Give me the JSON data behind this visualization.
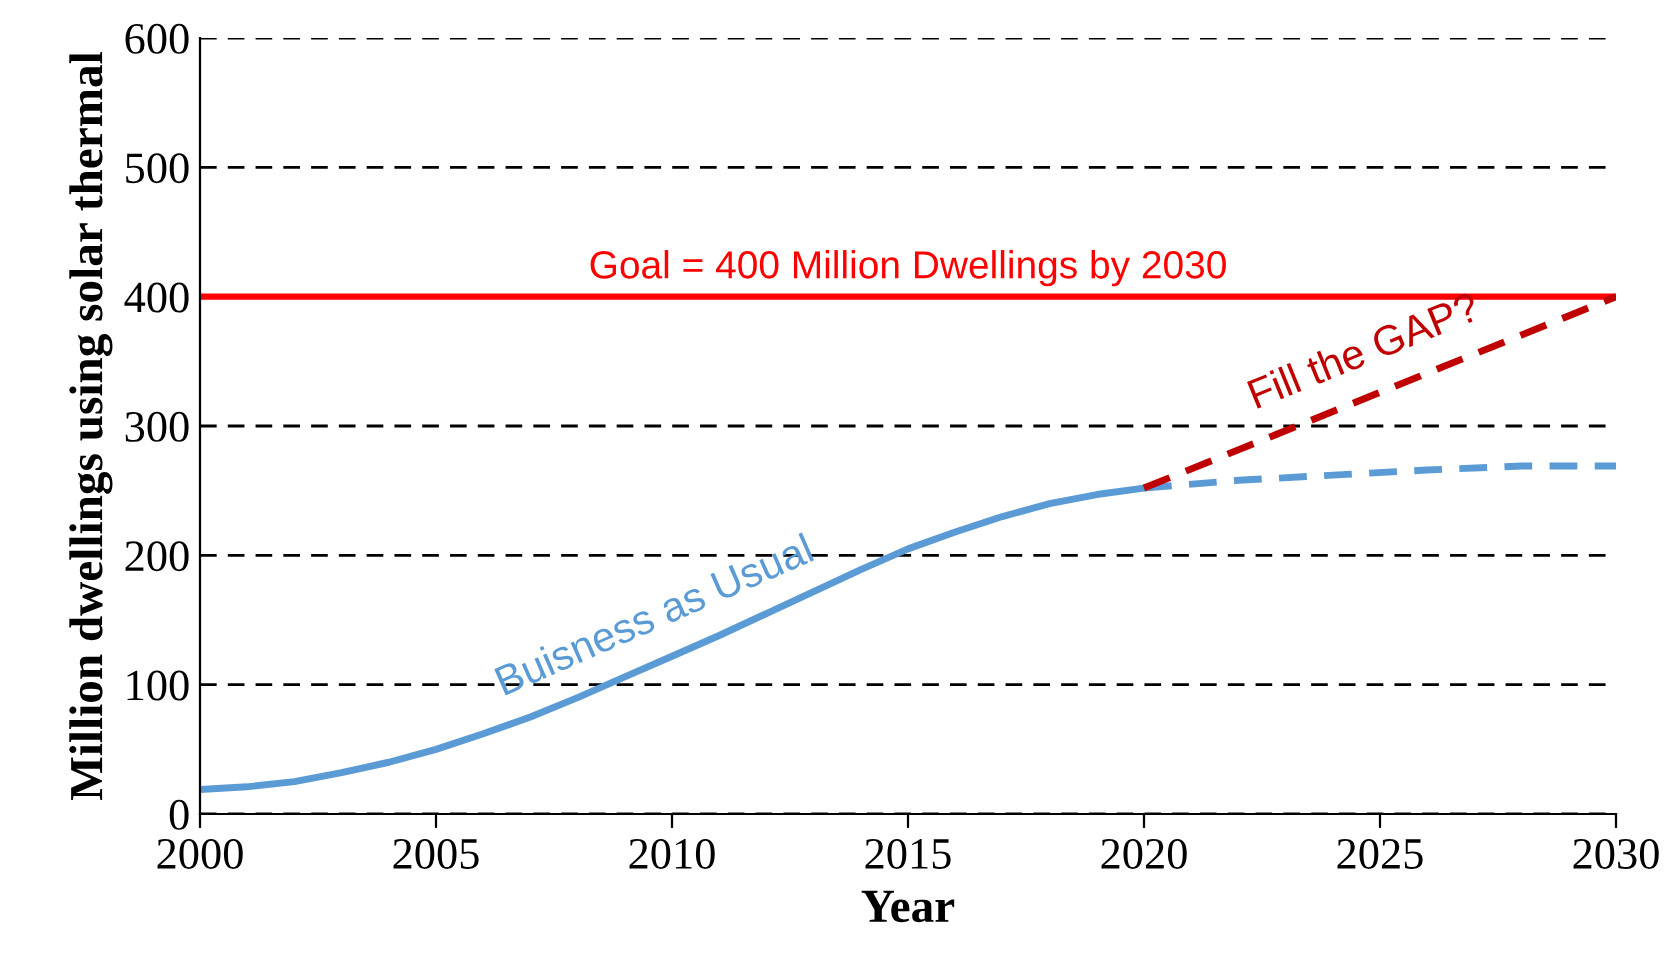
{
  "chart_data": {
    "type": "line",
    "xlabel": "Year",
    "ylabel": "Million dwellings using solar thermal",
    "xlim": [
      2000,
      2030
    ],
    "xticks": [
      2000,
      2005,
      2010,
      2015,
      2020,
      2025,
      2030
    ],
    "ylim": [
      0,
      600
    ],
    "yticks": [
      0,
      100,
      200,
      300,
      400,
      500,
      600
    ],
    "grid": "y",
    "legend": false,
    "series": [
      {
        "name": "Buisness as Usual",
        "color": "#5b9bd5",
        "line_style": "solid",
        "x": [
          2000,
          2001,
          2002,
          2003,
          2004,
          2005,
          2006,
          2007,
          2008,
          2009,
          2010,
          2011,
          2012,
          2013,
          2014,
          2015,
          2016,
          2017,
          2018,
          2019,
          2020
        ],
        "values": [
          19,
          21,
          25,
          32,
          40,
          50,
          62,
          75,
          90,
          106,
          122,
          138,
          155,
          172,
          189,
          205,
          218,
          230,
          240,
          247,
          252
        ]
      },
      {
        "color": "#5b9bd5",
        "line_style": "dashed",
        "x": [
          2020,
          2022,
          2024,
          2026,
          2028,
          2030
        ],
        "values": [
          252,
          258,
          262,
          266,
          269,
          269
        ]
      },
      {
        "name": "Fill the GAP?",
        "color": "#c00000",
        "line_style": "dashed",
        "x": [
          2020,
          2030
        ],
        "values": [
          252,
          400
        ]
      }
    ],
    "ref_lines": [
      {
        "axis": "y",
        "value": 400,
        "label": "Goal = 400 Million Dwellings by 2030",
        "color": "#ff0000",
        "line_style": "solid"
      }
    ]
  }
}
